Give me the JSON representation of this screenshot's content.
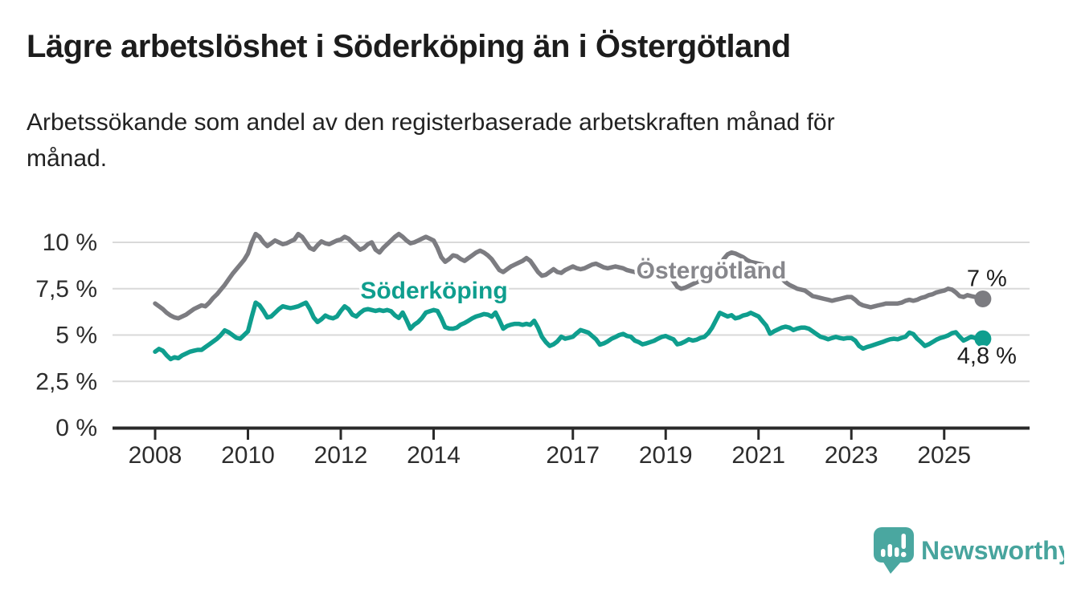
{
  "header": {
    "title": "Lägre arbetslöshet i Söderköping än i Östergötland",
    "subtitle": "Arbetssökande som andel av den registerbaserade arbetskraften månad för\nmånad."
  },
  "chart_data": {
    "type": "line",
    "unit": "percent",
    "frequency": "monthly",
    "x_start": "2008-01",
    "x_end": "2025-11",
    "grid": true,
    "legend_position": "inline-labels",
    "ylim": [
      0,
      11
    ],
    "x_tick_years": [
      2008,
      2010,
      2012,
      2014,
      2017,
      2019,
      2021,
      2023,
      2025
    ],
    "y_ticks": [
      {
        "value": 0,
        "label": "0 %"
      },
      {
        "value": 2.5,
        "label": "2,5 %"
      },
      {
        "value": 5,
        "label": "5 %"
      },
      {
        "value": 7.5,
        "label": "7,5 %"
      },
      {
        "value": 10,
        "label": "10 %"
      }
    ],
    "series": [
      {
        "name": "Östergötland",
        "color": "#7c7c81",
        "label_color": "#87878c",
        "end_label": "7 %",
        "values": [
          6.7,
          6.55,
          6.4,
          6.2,
          6.05,
          5.95,
          5.9,
          6.0,
          6.1,
          6.25,
          6.4,
          6.5,
          6.6,
          6.55,
          6.75,
          7.0,
          7.2,
          7.45,
          7.7,
          8.0,
          8.3,
          8.55,
          8.8,
          9.05,
          9.4,
          10.0,
          10.45,
          10.3,
          10.0,
          9.8,
          9.95,
          10.1,
          10.0,
          9.9,
          9.95,
          10.05,
          10.15,
          10.45,
          10.3,
          10.0,
          9.7,
          9.6,
          9.85,
          10.05,
          9.95,
          9.9,
          10.0,
          10.1,
          10.15,
          10.3,
          10.2,
          10.0,
          9.8,
          9.6,
          9.7,
          9.9,
          10.0,
          9.6,
          9.45,
          9.7,
          9.9,
          10.1,
          10.3,
          10.45,
          10.3,
          10.1,
          9.95,
          10.0,
          10.1,
          10.2,
          10.3,
          10.2,
          10.1,
          9.7,
          9.2,
          8.95,
          9.1,
          9.3,
          9.25,
          9.1,
          9.0,
          9.15,
          9.3,
          9.45,
          9.55,
          9.45,
          9.3,
          9.1,
          8.8,
          8.5,
          8.4,
          8.55,
          8.7,
          8.8,
          8.9,
          9.0,
          9.15,
          9.0,
          8.7,
          8.4,
          8.2,
          8.25,
          8.4,
          8.55,
          8.4,
          8.35,
          8.5,
          8.6,
          8.7,
          8.6,
          8.55,
          8.6,
          8.7,
          8.8,
          8.85,
          8.75,
          8.65,
          8.6,
          8.65,
          8.7,
          8.65,
          8.6,
          8.5,
          8.45,
          8.4,
          8.35,
          8.3,
          8.35,
          8.4,
          8.5,
          8.55,
          8.6,
          8.4,
          8.2,
          7.9,
          7.6,
          7.5,
          7.55,
          7.65,
          7.75,
          7.85,
          7.95,
          8.05,
          8.15,
          8.25,
          8.4,
          8.7,
          9.1,
          9.35,
          9.45,
          9.4,
          9.3,
          9.2,
          9.05,
          8.95,
          8.9,
          8.85,
          8.8,
          8.7,
          8.6,
          8.45,
          8.25,
          8.05,
          7.85,
          7.7,
          7.6,
          7.5,
          7.45,
          7.4,
          7.25,
          7.1,
          7.05,
          7.0,
          6.95,
          6.9,
          6.85,
          6.9,
          6.95,
          7.0,
          7.05,
          7.05,
          6.9,
          6.7,
          6.6,
          6.55,
          6.5,
          6.55,
          6.6,
          6.65,
          6.7,
          6.7,
          6.7,
          6.7,
          6.75,
          6.85,
          6.9,
          6.85,
          6.9,
          7.0,
          7.05,
          7.15,
          7.2,
          7.3,
          7.35,
          7.4,
          7.5,
          7.45,
          7.3,
          7.1,
          7.05,
          7.15,
          7.1,
          7.05,
          7.0,
          6.95
        ]
      },
      {
        "name": "Söderköping",
        "color": "#0f9e8e",
        "label_color": "#0f9e8e",
        "end_label": "4,8 %",
        "values": [
          4.1,
          4.25,
          4.15,
          3.9,
          3.7,
          3.8,
          3.75,
          3.9,
          4.0,
          4.1,
          4.15,
          4.2,
          4.2,
          4.35,
          4.5,
          4.65,
          4.8,
          5.0,
          5.25,
          5.15,
          5.0,
          4.85,
          4.8,
          5.0,
          5.2,
          6.0,
          6.75,
          6.6,
          6.3,
          5.95,
          6.0,
          6.2,
          6.4,
          6.55,
          6.5,
          6.45,
          6.5,
          6.55,
          6.65,
          6.75,
          6.4,
          5.95,
          5.7,
          5.85,
          6.05,
          5.95,
          5.9,
          6.0,
          6.3,
          6.55,
          6.4,
          6.1,
          6.0,
          6.2,
          6.35,
          6.4,
          6.35,
          6.3,
          6.35,
          6.3,
          6.35,
          6.28,
          6.06,
          5.92,
          6.21,
          5.8,
          5.34,
          5.56,
          5.7,
          5.92,
          6.21,
          6.28,
          6.35,
          6.3,
          5.9,
          5.42,
          5.35,
          5.34,
          5.4,
          5.56,
          5.65,
          5.77,
          5.9,
          6.0,
          6.06,
          6.13,
          6.1,
          5.99,
          6.21,
          5.8,
          5.34,
          5.49,
          5.56,
          5.6,
          5.6,
          5.55,
          5.6,
          5.55,
          5.77,
          5.4,
          4.9,
          4.62,
          4.41,
          4.5,
          4.66,
          4.91,
          4.8,
          4.85,
          4.91,
          5.1,
          5.27,
          5.2,
          5.13,
          4.95,
          4.77,
          4.48,
          4.55,
          4.66,
          4.8,
          4.89,
          5.0,
          5.06,
          4.95,
          4.91,
          4.7,
          4.62,
          4.5,
          4.55,
          4.62,
          4.69,
          4.8,
          4.9,
          4.95,
          4.85,
          4.77,
          4.5,
          4.55,
          4.65,
          4.77,
          4.7,
          4.75,
          4.85,
          4.9,
          5.1,
          5.4,
          5.8,
          6.2,
          6.1,
          6.0,
          6.07,
          5.9,
          5.95,
          6.05,
          6.1,
          6.2,
          6.1,
          6.0,
          5.75,
          5.5,
          5.07,
          5.2,
          5.3,
          5.4,
          5.45,
          5.4,
          5.27,
          5.35,
          5.4,
          5.4,
          5.34,
          5.2,
          5.05,
          4.91,
          4.85,
          4.77,
          4.84,
          4.9,
          4.84,
          4.8,
          4.84,
          4.84,
          4.7,
          4.41,
          4.27,
          4.35,
          4.41,
          4.48,
          4.55,
          4.62,
          4.7,
          4.77,
          4.8,
          4.77,
          4.85,
          4.91,
          5.13,
          5.05,
          4.8,
          4.62,
          4.41,
          4.5,
          4.62,
          4.75,
          4.84,
          4.9,
          4.98,
          5.1,
          5.15,
          4.91,
          4.7,
          4.8,
          4.91,
          4.84,
          4.8,
          4.8
        ]
      }
    ]
  },
  "footer": {
    "brand": "Newsworthy",
    "brand_color": "#47a49d"
  }
}
